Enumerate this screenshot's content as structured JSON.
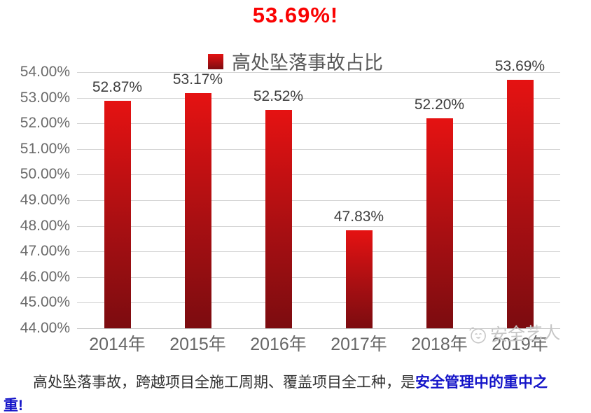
{
  "page": {
    "title": "53.69%!",
    "footer": {
      "line1_normal": "高处坠落事故，跨越项目全施工周期、覆盖项目全工种，是",
      "line1_highlight": "安全管理中的重中之",
      "line2_highlight": "重!"
    }
  },
  "watermark": {
    "text": "安全艺人",
    "icon": "smiley-face-icon"
  },
  "chart_data": {
    "type": "bar",
    "title": "53.69%!",
    "legend": "高处坠落事故占比",
    "legend_position": "top",
    "categories": [
      "2014年",
      "2015年",
      "2016年",
      "2017年",
      "2018年",
      "2019年"
    ],
    "values": [
      52.87,
      53.17,
      52.52,
      47.83,
      52.2,
      53.69
    ],
    "value_labels": [
      "52.87%",
      "53.17%",
      "52.52%",
      "47.83%",
      "52.20%",
      "53.69%"
    ],
    "ylim": [
      44,
      54
    ],
    "ytick_step": 1,
    "ytick_labels": [
      "44.00%",
      "45.00%",
      "46.00%",
      "47.00%",
      "48.00%",
      "49.00%",
      "50.00%",
      "51.00%",
      "52.00%",
      "53.00%",
      "54.00%"
    ],
    "grid": true,
    "bar_color_top": "#e51212",
    "bar_color_bottom": "#7c0c10",
    "title_color": "#fa0202",
    "gridline_color": "#d4d4d4"
  }
}
